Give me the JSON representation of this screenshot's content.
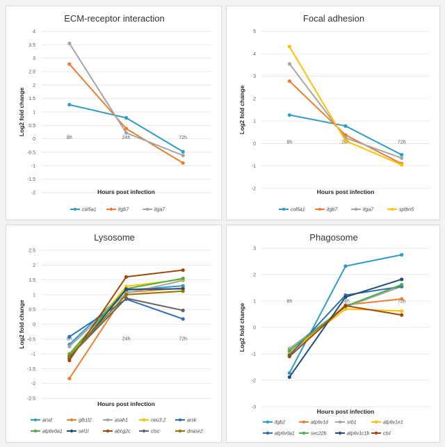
{
  "chart_data": [
    {
      "type": "line",
      "title": "ECM-receptor interaction",
      "xlabel": "Hours post infection",
      "ylabel": "Log2 fold change",
      "categories": [
        "8h",
        "24h",
        "72h"
      ],
      "ylim": [
        -2,
        4
      ],
      "yticks": [
        "4",
        "3.5",
        "3",
        "2.5",
        "2",
        "1.5",
        "1",
        "0.5",
        "0",
        "-0.5",
        "-1",
        "-1.5",
        "-2"
      ],
      "ytick_values": [
        4,
        3.5,
        3,
        2.5,
        2,
        1.5,
        1,
        0.5,
        0,
        -0.5,
        -1,
        -1.5,
        -2
      ],
      "series": [
        {
          "name": "col5a1",
          "color": "#2e9bc8",
          "values": [
            1.27,
            0.78,
            -0.48
          ]
        },
        {
          "name": "itgb7",
          "color": "#ed7d31",
          "values": [
            2.78,
            0.38,
            -0.9
          ]
        },
        {
          "name": "itga7",
          "color": "#a5a5a5",
          "values": [
            3.55,
            0.22,
            -0.62
          ]
        }
      ]
    },
    {
      "type": "line",
      "title": "Focal adhesion",
      "xlabel": "Hours post infection",
      "ylabel": "Log2 fold change",
      "categories": [
        "8h",
        "24h",
        "72h"
      ],
      "ylim": [
        -2,
        5
      ],
      "yticks": [
        "5",
        "4",
        "3",
        "2",
        "1",
        "0",
        "-1",
        "-2"
      ],
      "ytick_values": [
        5,
        4,
        3,
        2,
        1,
        0,
        -1,
        -2
      ],
      "series": [
        {
          "name": "col5a1",
          "color": "#2e9bc8",
          "values": [
            1.27,
            0.78,
            -0.5
          ]
        },
        {
          "name": "itgb7",
          "color": "#ed7d31",
          "values": [
            2.78,
            0.38,
            -0.9
          ]
        },
        {
          "name": "itga7",
          "color": "#a5a5a5",
          "values": [
            3.55,
            0.25,
            -0.65
          ]
        },
        {
          "name": "sptbn5",
          "color": "#ffc000",
          "values": [
            4.32,
            0.12,
            -0.95
          ]
        }
      ]
    },
    {
      "type": "line",
      "title": "Lysosome",
      "xlabel": "Hours post infection",
      "ylabel": "Log2 fold change",
      "categories": [
        "8h",
        "24h",
        "72h"
      ],
      "ylim": [
        -2.5,
        2.5
      ],
      "yticks": [
        "2.5",
        "2",
        "1.5",
        "1",
        "0.5",
        "0",
        "-0.5",
        "-1",
        "-1.5",
        "-2",
        "-2.5"
      ],
      "ytick_values": [
        2.5,
        2,
        1.5,
        1,
        0.5,
        0,
        -0.5,
        -1,
        -1.5,
        -2,
        -2.5
      ],
      "series": [
        {
          "name": "arsd",
          "color": "#2e9bc8",
          "values": [
            -0.68,
            1.15,
            1.3
          ]
        },
        {
          "name": "glb1l2",
          "color": "#ed7d31",
          "values": [
            -1.83,
            1.08,
            1.22
          ]
        },
        {
          "name": "asah1",
          "color": "#a5a5a5",
          "values": [
            -0.75,
            1.05,
            1.48
          ]
        },
        {
          "name": "neu3.2",
          "color": "#ffc000",
          "values": [
            -1.05,
            1.28,
            1.52
          ]
        },
        {
          "name": "arsk",
          "color": "#2f6eb5",
          "values": [
            -0.42,
            0.85,
            0.18
          ]
        },
        {
          "name": "atp6v0a1",
          "color": "#4daf4a",
          "values": [
            -1.0,
            1.2,
            1.55
          ]
        },
        {
          "name": "sel1l",
          "color": "#1f4e79",
          "values": [
            -1.15,
            1.18,
            1.2
          ]
        },
        {
          "name": "abcg2c",
          "color": "#9e480e",
          "values": [
            -1.22,
            1.6,
            1.83
          ]
        },
        {
          "name": "ctsc",
          "color": "#636363",
          "values": [
            -1.1,
            0.88,
            0.47
          ]
        },
        {
          "name": "dnase2",
          "color": "#997300",
          "values": [
            -1.08,
            1.0,
            1.12
          ]
        }
      ]
    },
    {
      "type": "line",
      "title": "Phagosome",
      "xlabel": "Hours post infection",
      "ylabel": "Log2 fold change",
      "categories": [
        "8h",
        "24h",
        "72h"
      ],
      "ylim": [
        -3,
        3
      ],
      "yticks": [
        "3",
        "2",
        "1",
        "0",
        "-1",
        "-2",
        "-3"
      ],
      "ytick_values": [
        3,
        2,
        1,
        0,
        -1,
        -2,
        -3
      ],
      "series": [
        {
          "name": "itgb2",
          "color": "#2e9bc8",
          "values": [
            -1.72,
            2.32,
            2.75
          ]
        },
        {
          "name": "atp6v1d",
          "color": "#ed7d31",
          "values": [
            -1.0,
            0.85,
            1.08
          ]
        },
        {
          "name": "srb1",
          "color": "#a5a5a5",
          "values": [
            -0.8,
            0.78,
            1.55
          ]
        },
        {
          "name": "atp6v1e1",
          "color": "#ffc000",
          "values": [
            -0.95,
            0.7,
            0.62
          ]
        },
        {
          "name": "atp6v0a1",
          "color": "#2f6eb5",
          "values": [
            -1.05,
            1.22,
            1.55
          ]
        },
        {
          "name": "sec22b",
          "color": "#4daf4a",
          "values": [
            -0.88,
            0.8,
            1.62
          ]
        },
        {
          "name": "atp6v1c1b",
          "color": "#1f4e79",
          "values": [
            -1.88,
            1.15,
            1.82
          ]
        },
        {
          "name": "ctsl",
          "color": "#9e480e",
          "values": [
            -1.1,
            0.82,
            0.47
          ]
        }
      ]
    }
  ]
}
